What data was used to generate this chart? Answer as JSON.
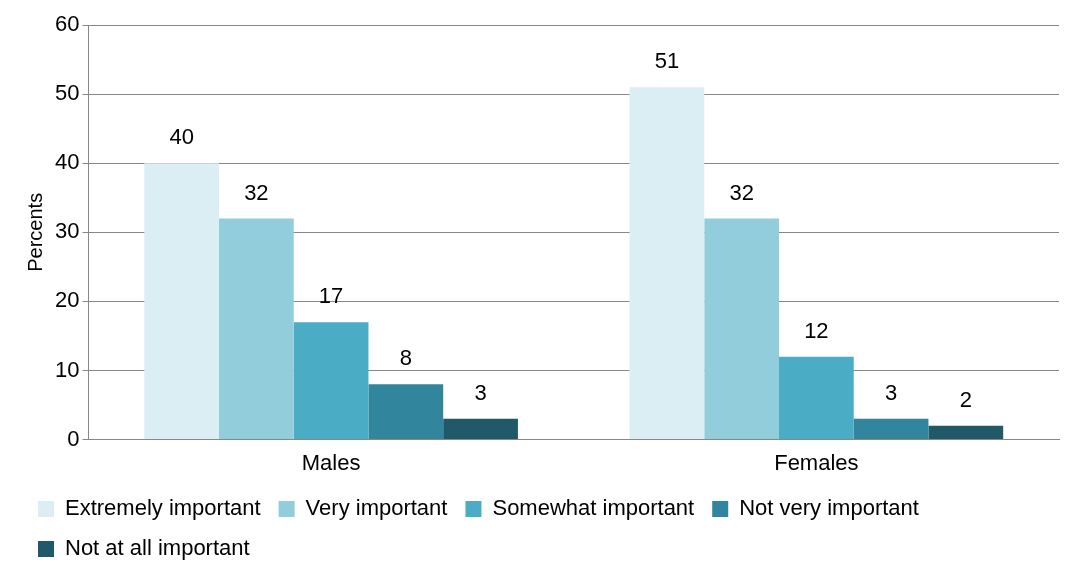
{
  "chart_data": {
    "type": "bar",
    "ylabel": "Percents",
    "categories": [
      "Males",
      "Females"
    ],
    "series": [
      {
        "name": "Extremely important",
        "color": "#dbeef4",
        "values": [
          40,
          51
        ]
      },
      {
        "name": "Very important",
        "color": "#92cddc",
        "values": [
          32,
          32
        ]
      },
      {
        "name": "Somewhat important",
        "color": "#4bacc6",
        "values": [
          17,
          12
        ]
      },
      {
        "name": "Not very important",
        "color": "#31859c",
        "values": [
          8,
          3
        ]
      },
      {
        "name": "Not at all important",
        "color": "#215968",
        "values": [
          3,
          2
        ]
      }
    ],
    "ylim": [
      0,
      60
    ],
    "yticks": [
      0,
      10,
      20,
      30,
      40,
      50,
      60
    ],
    "grid": "y",
    "legend": "bottom",
    "data_labels": true
  }
}
